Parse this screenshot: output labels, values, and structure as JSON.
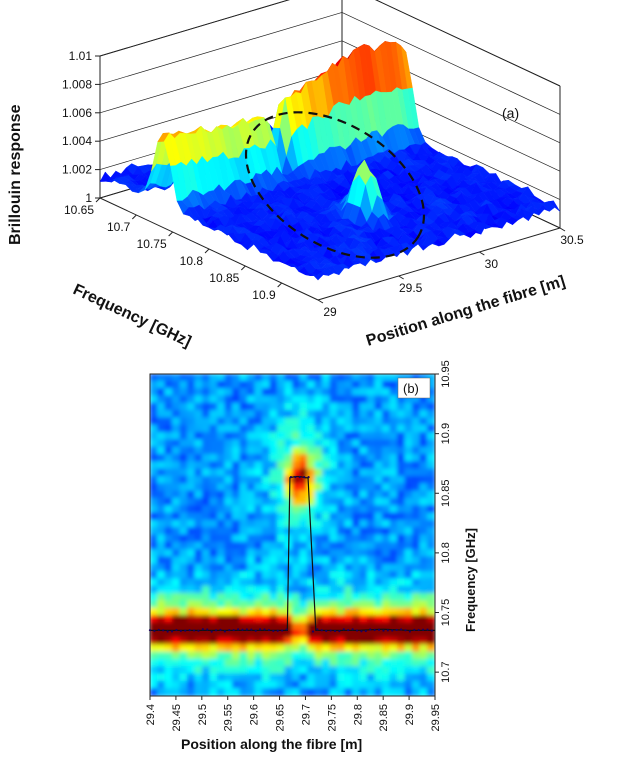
{
  "chart_data": [
    {
      "type": "surface",
      "panel_label": "(a)",
      "title": "",
      "zlabel": "Brillouin response",
      "xlabel": "Frequency [GHz]",
      "ylabel": "Position along the fibre [m]",
      "x_range": [
        10.65,
        10.95
      ],
      "y_range": [
        29,
        30.5
      ],
      "z_range": [
        1,
        1.01
      ],
      "z_ticks": [
        "1.01",
        "1.008",
        "1.006",
        "1.004",
        "1.002",
        "1"
      ],
      "x_ticks": [
        "10.65",
        "10.7",
        "10.75",
        "10.8",
        "10.85",
        "10.9"
      ],
      "y_ticks": [
        "29",
        "29.5",
        "30",
        "30.5"
      ],
      "colormap": "jet",
      "ridge": {
        "frequency": 10.735,
        "peak_response": 1.008
      },
      "anomaly": {
        "position": 29.69,
        "frequency": 10.86,
        "peak_response": 1.004
      },
      "annotation": "dashed ellipse around anomaly"
    },
    {
      "type": "heatmap",
      "panel_label": "(b)",
      "title": "",
      "xlabel": "Position along the fibre [m]",
      "ylabel": "Frequency [GHz]",
      "xlim": [
        29.4,
        29.95
      ],
      "ylim": [
        10.68,
        10.95
      ],
      "x_ticks": [
        "29.4",
        "29.45",
        "29.5",
        "29.55",
        "29.6",
        "29.65",
        "29.7",
        "29.75",
        "29.8",
        "29.85",
        "29.9",
        "29.95"
      ],
      "y_ticks": [
        "10.95",
        "10.9",
        "10.85",
        "10.8",
        "10.75",
        "10.7"
      ],
      "colormap": "jet",
      "peak_trace": {
        "x": [
          29.4,
          29.45,
          29.5,
          29.55,
          29.6,
          29.65,
          29.665,
          29.67,
          29.68,
          29.69,
          29.7,
          29.705,
          29.72,
          29.75,
          29.8,
          29.85,
          29.9,
          29.95
        ],
        "y": [
          10.735,
          10.735,
          10.735,
          10.735,
          10.735,
          10.735,
          10.735,
          10.863,
          10.864,
          10.864,
          10.863,
          10.863,
          10.735,
          10.735,
          10.735,
          10.736,
          10.735,
          10.735
        ]
      }
    }
  ]
}
